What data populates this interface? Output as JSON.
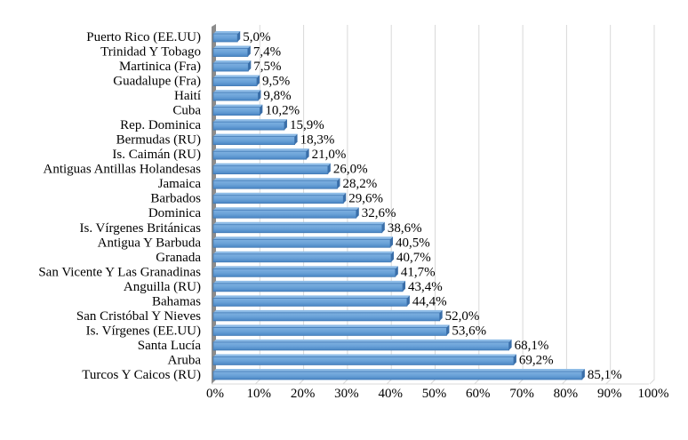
{
  "chart_data": {
    "type": "bar",
    "orientation": "horizontal",
    "categories": [
      "Puerto Rico (EE.UU)",
      "Trinidad Y Tobago",
      "Martinica (Fra)",
      "Guadalupe (Fra)",
      "Haití",
      "Cuba",
      "Rep. Dominica",
      "Bermudas (RU)",
      "Is. Caimán (RU)",
      "Antiguas Antillas Holandesas",
      "Jamaica",
      "Barbados",
      "Dominica",
      "Is. Vírgenes Británicas",
      "Antigua Y Barbuda",
      "Granada",
      "San Vicente Y Las Granadinas",
      "Anguilla (RU)",
      "Bahamas",
      "San Cristóbal Y Nieves",
      "Is. Vírgenes (EE.UU)",
      "Santa Lucía",
      "Aruba",
      "Turcos Y Caicos (RU)"
    ],
    "values": [
      5.0,
      7.4,
      7.5,
      9.5,
      9.8,
      10.2,
      15.9,
      18.3,
      21.0,
      26.0,
      28.2,
      29.6,
      32.6,
      38.6,
      40.5,
      40.7,
      41.7,
      43.4,
      44.4,
      52.0,
      53.6,
      68.1,
      69.2,
      85.1
    ],
    "data_labels": [
      "5,0%",
      "7,4%",
      "7,5%",
      "9,5%",
      "9,8%",
      "10,2%",
      "15,9%",
      "18,3%",
      "21,0%",
      "26,0%",
      "28,2%",
      "29,6%",
      "32,6%",
      "38,6%",
      "40,5%",
      "40,7%",
      "41,7%",
      "43,4%",
      "44,4%",
      "52,0%",
      "53,6%",
      "68,1%",
      "69,2%",
      "85,1%"
    ],
    "xticks": [
      "0%",
      "10%",
      "20%",
      "30%",
      "40%",
      "50%",
      "60%",
      "70%",
      "80%",
      "90%",
      "100%"
    ],
    "xlim": [
      0,
      100
    ],
    "title": "",
    "xlabel": "",
    "ylabel": "",
    "grid": true,
    "bar_color": "#5b9bd5"
  }
}
